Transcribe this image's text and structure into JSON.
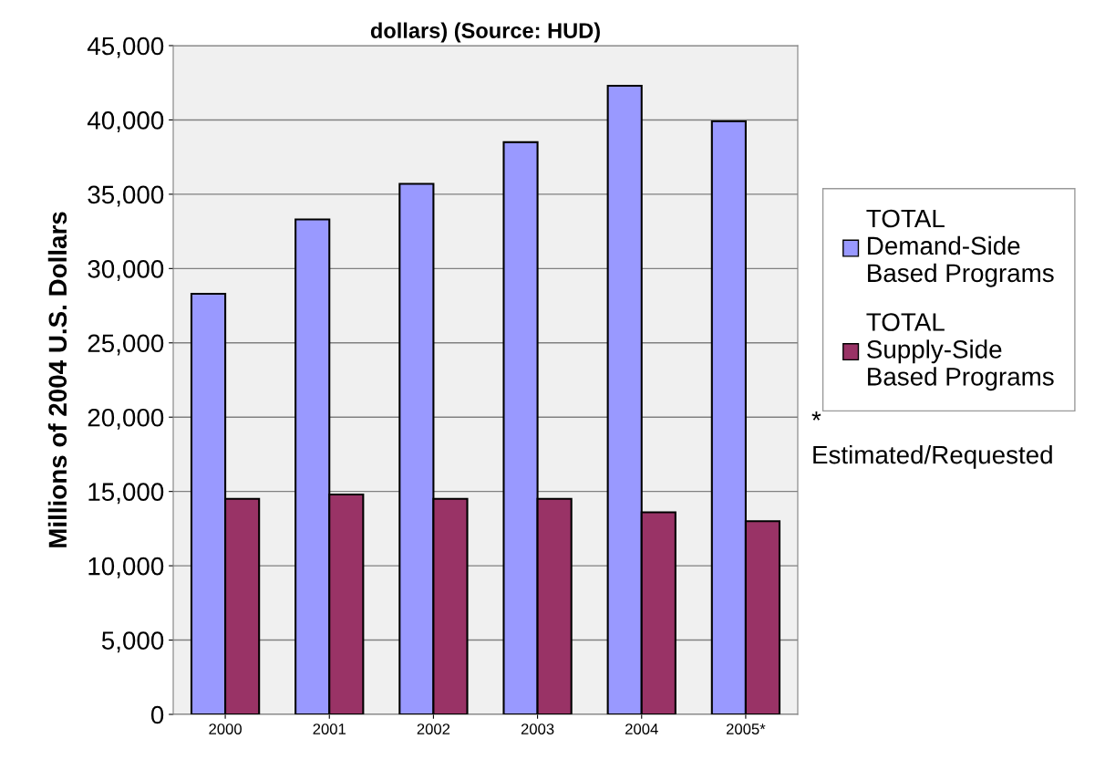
{
  "chart_data": {
    "type": "bar",
    "title": "dollars) (Source: HUD)",
    "ylabel": "Millions of 2004 U.S. Dollars",
    "categories": [
      "2000",
      "2001",
      "2002",
      "2003",
      "2004",
      "2005*"
    ],
    "series": [
      {
        "name": "TOTAL Demand-Side Based Programs",
        "color": "#9999ff",
        "values": [
          28300,
          33300,
          35700,
          38500,
          42300,
          39900
        ]
      },
      {
        "name": "TOTAL Supply-Side Based Programs",
        "color": "#993366",
        "values": [
          14500,
          14800,
          14500,
          14500,
          13600,
          13000
        ]
      }
    ],
    "ylim": [
      0,
      45000
    ],
    "yticks": [
      {
        "value": 0,
        "label": "0"
      },
      {
        "value": 5000,
        "label": "5,000"
      },
      {
        "value": 10000,
        "label": "10,000"
      },
      {
        "value": 15000,
        "label": "15,000"
      },
      {
        "value": 20000,
        "label": "20,000"
      },
      {
        "value": 25000,
        "label": "25,000"
      },
      {
        "value": 30000,
        "label": "30,000"
      },
      {
        "value": 35000,
        "label": "35,000"
      },
      {
        "value": 40000,
        "label": "40,000"
      },
      {
        "value": 45000,
        "label": "45,000"
      }
    ],
    "grid": "y",
    "legend": "right",
    "annotations": [
      "*\nEstimated/Requested"
    ]
  }
}
